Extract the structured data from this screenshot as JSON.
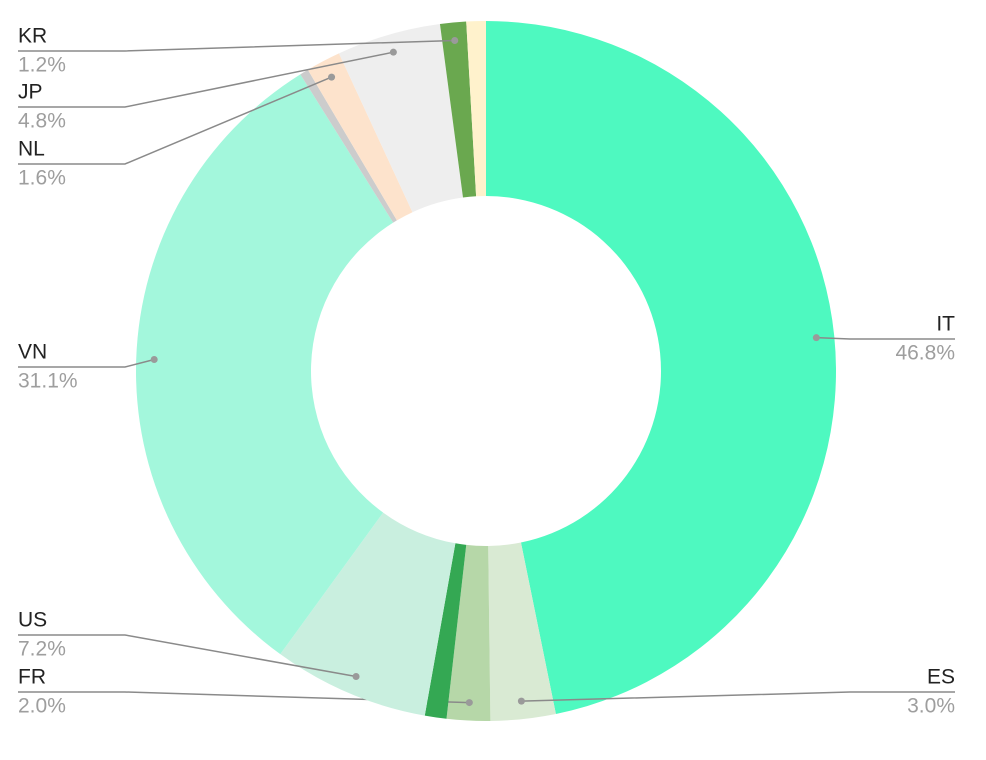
{
  "chart_data": {
    "type": "donut",
    "categories": [
      "IT",
      "ES",
      "FR",
      null,
      "US",
      "VN",
      null,
      "NL",
      "JP",
      "KR",
      null
    ],
    "values": [
      46.8,
      3.0,
      2.0,
      1.0,
      7.2,
      31.1,
      0.4,
      1.6,
      4.8,
      1.2,
      0.9
    ],
    "value_labels": [
      "46.8%",
      "3.0%",
      "2.0%",
      null,
      "7.2%",
      "31.1%",
      null,
      "1.6%",
      "4.8%",
      "1.2%",
      null
    ],
    "colors": [
      "#4ef9c0",
      "#d9ead3",
      "#b6d7a8",
      "#34a853",
      "#c9efdf",
      "#a3f7dc",
      "#cccccc",
      "#fde3cc",
      "#eeeeee",
      "#6aa84f",
      "#fff2cc"
    ]
  }
}
